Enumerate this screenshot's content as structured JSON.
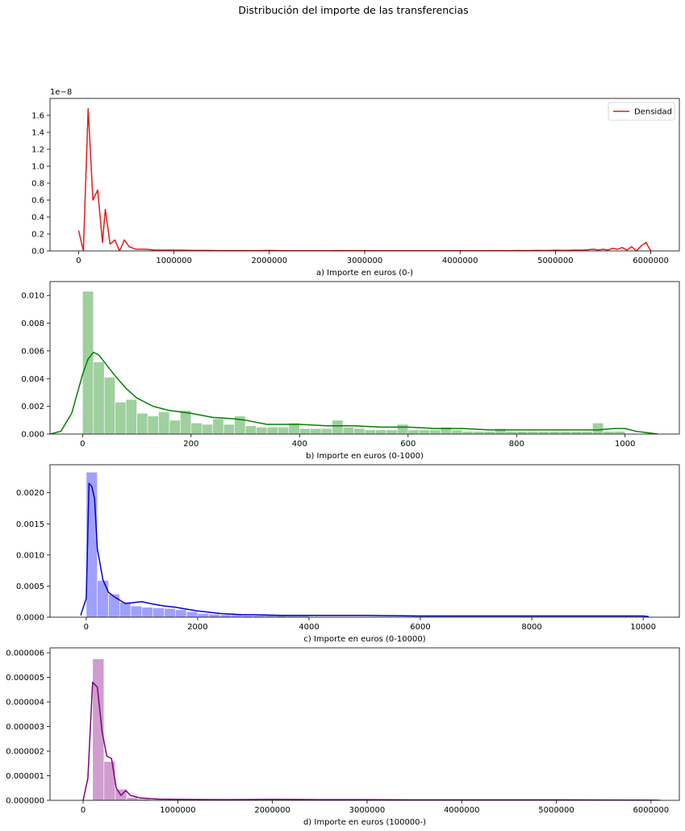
{
  "figure": {
    "title": "Distribución del importe de las transferencias"
  },
  "chart_data": [
    {
      "type": "line",
      "xlabel": "a) Importe en euros (0-)",
      "ylabel": "",
      "scale_note": "1e−8",
      "xlim": [
        -300000,
        6300000
      ],
      "ylim": [
        0,
        1.8
      ],
      "xticks": [
        0,
        1000000,
        2000000,
        3000000,
        4000000,
        5000000,
        6000000
      ],
      "yticks": [
        0.0,
        0.2,
        0.4,
        0.6,
        0.8,
        1.0,
        1.2,
        1.4,
        1.6
      ],
      "ytick_labels": [
        "0.0",
        "0.2",
        "0.4",
        "0.6",
        "0.8",
        "1.0",
        "1.2",
        "1.4",
        "1.6"
      ],
      "legend": {
        "position": "top-right",
        "entries": [
          "Densidad"
        ]
      },
      "color": "#e41a1c",
      "series": [
        {
          "name": "Densidad",
          "x": [
            0,
            50000,
            100000,
            150000,
            200000,
            250000,
            280000,
            330000,
            380000,
            430000,
            480000,
            530000,
            600000,
            700000,
            800000,
            900000,
            1000000,
            1100000,
            1200000,
            1300000,
            1400000,
            1500000,
            1600000,
            1700000,
            1800000,
            1900000,
            2000000,
            2100000,
            2200000,
            2500000,
            2600000,
            2700000,
            3000000,
            3100000,
            3500000,
            4000000,
            4200000,
            4400000,
            4500000,
            4600000,
            4700000,
            4800000,
            4900000,
            5000000,
            5100000,
            5200000,
            5300000,
            5400000,
            5450000,
            5500000,
            5550000,
            5600000,
            5650000,
            5700000,
            5750000,
            5800000,
            5850000,
            5900000,
            5950000,
            6000000
          ],
          "y": [
            0.24,
            0.0,
            1.68,
            0.6,
            0.72,
            0.1,
            0.49,
            0.08,
            0.13,
            0.0,
            0.13,
            0.05,
            0.02,
            0.02,
            0.01,
            0.01,
            0.01,
            0.008,
            0.006,
            0.006,
            0.005,
            0.004,
            0.004,
            0.004,
            0.004,
            0.004,
            0.006,
            0.004,
            0.003,
            0.003,
            0.003,
            0.004,
            0.004,
            0.003,
            0.003,
            0.003,
            0.002,
            0.004,
            0.002,
            0.005,
            0.004,
            0.006,
            0.005,
            0.008,
            0.006,
            0.01,
            0.01,
            0.02,
            0.01,
            0.02,
            0.01,
            0.03,
            0.02,
            0.04,
            0.01,
            0.05,
            0.0,
            0.06,
            0.1,
            0.0
          ]
        }
      ]
    },
    {
      "type": "bar",
      "xlabel": "b) Importe en euros (0-1000)",
      "ylabel": "",
      "xlim": [
        -60,
        1100
      ],
      "ylim": [
        0,
        0.011
      ],
      "xticks": [
        0,
        200,
        400,
        600,
        800,
        1000
      ],
      "yticks": [
        0.0,
        0.002,
        0.004,
        0.006,
        0.008,
        0.01
      ],
      "ytick_labels": [
        "0.000",
        "0.002",
        "0.004",
        "0.006",
        "0.008",
        "0.010"
      ],
      "color": "#2ca02c",
      "bar_color": "#9acd99",
      "line_color": "#008000",
      "series": [
        {
          "histogram": {
            "edges": [
              0,
              20,
              40,
              60,
              80,
              100,
              120,
              140,
              160,
              180,
              200,
              220,
              240,
              260,
              280,
              300,
              320,
              340,
              360,
              380,
              400,
              420,
              440,
              460,
              480,
              500,
              520,
              540,
              560,
              580,
              600,
              620,
              640,
              660,
              680,
              700,
              720,
              740,
              760,
              780,
              800,
              820,
              840,
              860,
              880,
              900,
              920,
              940,
              960,
              980,
              1000
            ],
            "values": [
              0.0103,
              0.0052,
              0.0041,
              0.0023,
              0.0025,
              0.0015,
              0.0013,
              0.0016,
              0.001,
              0.0017,
              0.0008,
              0.0007,
              0.0011,
              0.0007,
              0.0013,
              0.0006,
              0.0005,
              0.0005,
              0.0005,
              0.0008,
              0.0004,
              0.0004,
              0.0004,
              0.001,
              0.0005,
              0.0004,
              0.0003,
              0.0003,
              0.0003,
              0.0007,
              0.0003,
              0.0003,
              0.0003,
              0.0005,
              0.0003,
              0.0002,
              0.0002,
              0.0002,
              0.0004,
              0.0002,
              0.0002,
              0.0002,
              0.0002,
              0.0002,
              0.0002,
              0.0002,
              0.0002,
              0.0008,
              0.0002,
              0.0002
            ]
          },
          "kde": {
            "x": [
              -60,
              -40,
              -20,
              0,
              10,
              20,
              30,
              40,
              60,
              80,
              100,
              130,
              160,
              200,
              240,
              280,
              300,
              340,
              400,
              450,
              500,
              550,
              600,
              650,
              700,
              750,
              800,
              850,
              900,
              950,
              980,
              1000,
              1020,
              1040,
              1060
            ],
            "y": [
              0.0,
              0.0002,
              0.0015,
              0.0043,
              0.0054,
              0.0059,
              0.0057,
              0.0052,
              0.0042,
              0.0033,
              0.0026,
              0.002,
              0.0017,
              0.0015,
              0.0012,
              0.0011,
              0.001,
              0.0007,
              0.0007,
              0.0006,
              0.0006,
              0.0005,
              0.0005,
              0.0004,
              0.0004,
              0.0003,
              0.0003,
              0.0003,
              0.0003,
              0.0003,
              0.0004,
              0.0004,
              0.0002,
              0.0001,
              0.0
            ]
          }
        }
      ]
    },
    {
      "type": "bar",
      "xlabel": "c) Importe en euros (0-10000)",
      "ylabel": "",
      "xlim": [
        -650,
        10650
      ],
      "ylim": [
        0,
        0.00245
      ],
      "xticks": [
        0,
        2000,
        4000,
        6000,
        8000,
        10000
      ],
      "yticks": [
        0.0,
        0.0005,
        0.001,
        0.0015,
        0.002
      ],
      "ytick_labels": [
        "0.0000",
        "0.0005",
        "0.0010",
        "0.0015",
        "0.0020"
      ],
      "color": "#1f1fff",
      "bar_color": "#9b9bff",
      "line_color": "#0000cc",
      "series": [
        {
          "histogram": {
            "edges": [
              0,
              200,
              400,
              600,
              800,
              1000,
              1200,
              1400,
              1600,
              1800,
              2000,
              2200,
              2400,
              2600,
              2800,
              3000,
              3200,
              3400,
              3600,
              3800,
              4000
            ],
            "values": [
              0.00233,
              0.00059,
              0.00037,
              0.00024,
              0.00018,
              0.00016,
              0.00015,
              0.00014,
              0.00012,
              9e-05,
              6e-05,
              5e-05,
              4e-05,
              4e-05,
              3e-05,
              3e-05,
              3e-05,
              3e-05,
              2e-05,
              2e-05
            ]
          },
          "kde": {
            "x": [
              -100,
              0,
              50,
              100,
              150,
              200,
              300,
              400,
              500,
              700,
              900,
              1000,
              1200,
              1400,
              1600,
              1800,
              2000,
              2400,
              2800,
              3000,
              3500,
              4000,
              5000,
              6000,
              7000,
              8000,
              9000,
              10000,
              10100
            ],
            "y": [
              3e-05,
              0.0003,
              0.00215,
              0.0021,
              0.0019,
              0.0011,
              0.0006,
              0.0004,
              0.00033,
              0.00022,
              0.00024,
              0.00025,
              0.00021,
              0.00018,
              0.00016,
              0.00013,
              0.0001,
              6e-05,
              4e-05,
              4e-05,
              3e-05,
              3e-05,
              3e-05,
              2e-05,
              2e-05,
              2e-05,
              2e-05,
              2e-05,
              1e-05
            ]
          }
        }
      ]
    },
    {
      "type": "bar",
      "xlabel": "d) Importe en euros (100000-)",
      "ylabel": "",
      "xlim": [
        -350000,
        6300000
      ],
      "ylim": [
        0,
        6.2e-06
      ],
      "xticks": [
        0,
        1000000,
        2000000,
        3000000,
        4000000,
        5000000,
        6000000
      ],
      "yticks": [
        0.0,
        1e-06,
        2e-06,
        3e-06,
        4e-06,
        5e-06,
        6e-06
      ],
      "ytick_labels": [
        "0.000000",
        "0.000001",
        "0.000002",
        "0.000003",
        "0.000004",
        "0.000005",
        "0.000006"
      ],
      "color": "#800080",
      "bar_color": "#cc99cc",
      "line_color": "#800080",
      "series": [
        {
          "histogram": {
            "edges": [
              100000,
              220000,
              340000,
              460000,
              580000,
              700000,
              820000
            ],
            "values": [
              5.75e-06,
              1.58e-06,
              4.5e-07,
              1.2e-07,
              6e-08,
              3e-08
            ]
          },
          "kde": {
            "x": [
              0,
              50000,
              100000,
              150000,
              200000,
              250000,
              300000,
              350000,
              400000,
              450000,
              500000,
              600000,
              800000,
              1000000,
              1500000,
              2000000,
              2500000,
              3000000,
              3500000,
              4000000,
              5000000,
              6000000,
              6100000
            ],
            "y": [
              0.0,
              9e-07,
              4.8e-06,
              4.6e-06,
              2.8e-06,
              1.8e-06,
              1.7e-06,
              5e-07,
              2e-07,
              4e-07,
              2e-07,
              1e-07,
              5e-08,
              4e-08,
              3e-08,
              4e-08,
              3e-08,
              3e-08,
              2e-08,
              2e-08,
              2e-08,
              1e-08,
              0.0
            ]
          }
        }
      ]
    }
  ]
}
